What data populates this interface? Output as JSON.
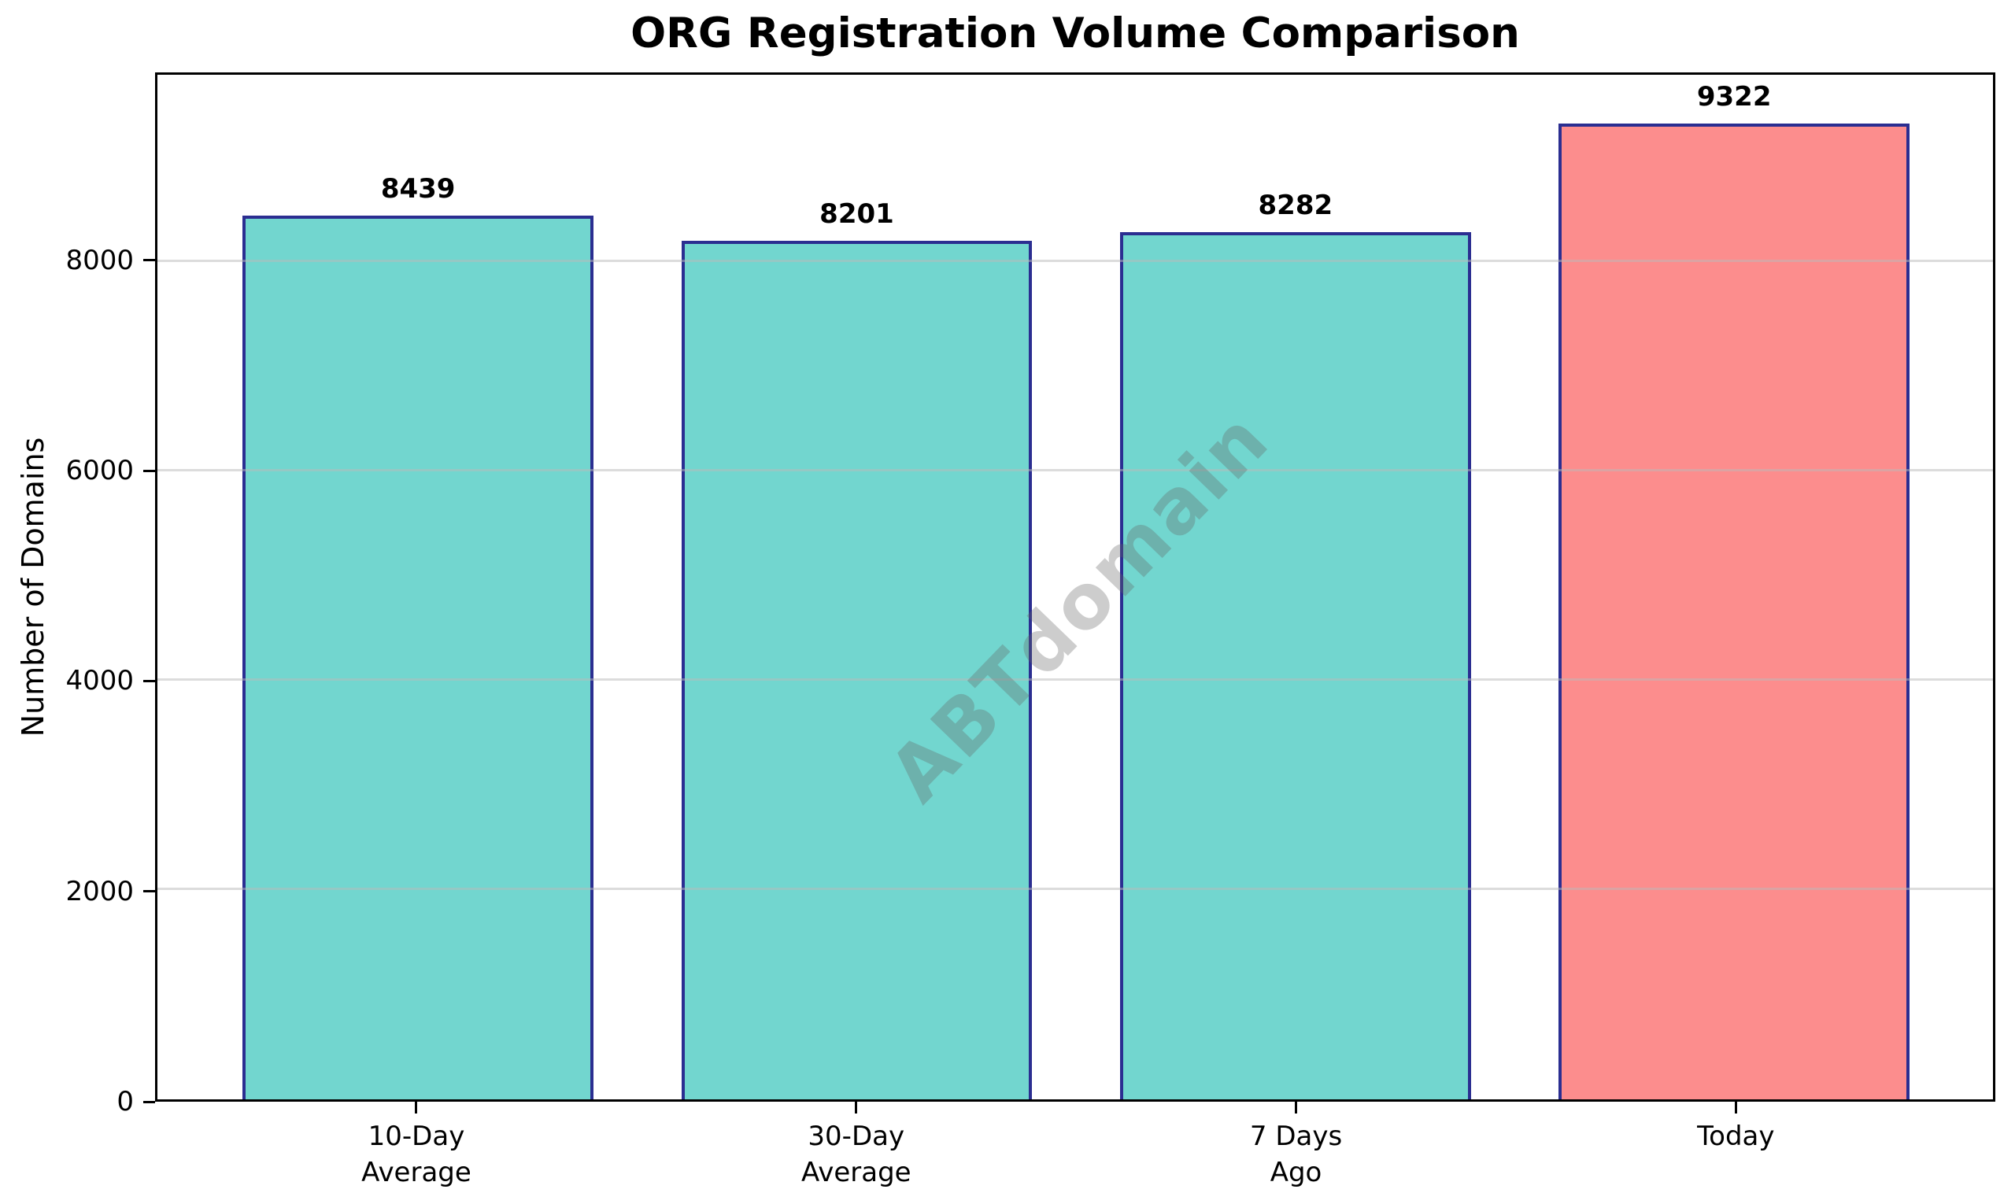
{
  "chart_data": {
    "type": "bar",
    "title": "ORG Registration Volume Comparison",
    "ylabel": "Number of Domains",
    "xlabel": "",
    "categories": [
      "10-Day\nAverage",
      "30-Day\nAverage",
      "7 Days\nAgo",
      "Today"
    ],
    "values": [
      8439,
      8201,
      8282,
      9322
    ],
    "value_labels": [
      "8439",
      "8201",
      "8282",
      "9322"
    ],
    "bar_colors": [
      "#72d6cf",
      "#72d6cf",
      "#72d6cf",
      "#fc8d8d"
    ],
    "bar_edge_color": "#2b2e91",
    "yticks": [
      0,
      2000,
      4000,
      6000,
      8000
    ],
    "ytick_labels": [
      "0",
      "2000",
      "4000",
      "6000",
      "8000"
    ],
    "ylim": [
      0,
      9788
    ],
    "grid": "horizontal",
    "legend": "none",
    "watermark": "ABTdomain",
    "colors": {
      "teal_bar": "#72d6cf",
      "highlight_bar": "#fc8d8d",
      "bar_edge": "#2b2e91",
      "gridline": "#dcdcdc",
      "watermark_gray": "#808080",
      "text": "#000000",
      "background": "#ffffff"
    }
  }
}
